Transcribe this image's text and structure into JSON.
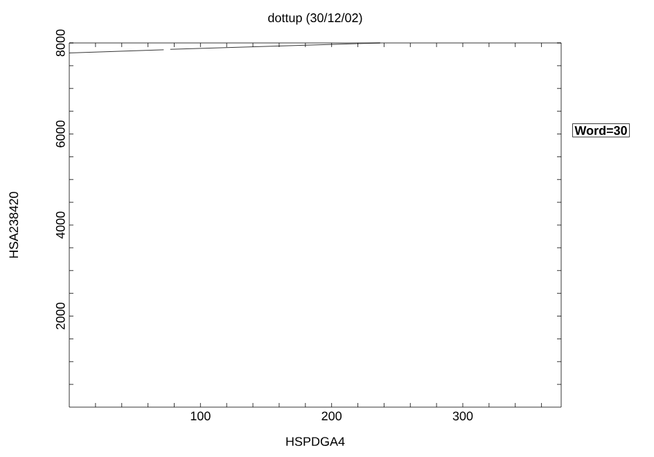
{
  "chart_data": {
    "type": "line",
    "title": "dottup (30/12/02)",
    "xlabel": "HSPDGA4",
    "ylabel": "HSA238420",
    "series": [
      {
        "color": "#000000",
        "x": [
          0,
          72,
          null,
          77,
          237
        ],
        "values": [
          7780,
          7850,
          null,
          7860,
          8000
        ]
      }
    ],
    "xlim": [
      0,
      375
    ],
    "ylim": [
      0,
      8000
    ],
    "xticks": [
      {
        "value": 20,
        "label": null
      },
      {
        "value": 40,
        "label": null
      },
      {
        "value": 60,
        "label": null
      },
      {
        "value": 80,
        "label": null
      },
      100,
      {
        "value": 120,
        "label": null
      },
      {
        "value": 140,
        "label": null
      },
      {
        "value": 160,
        "label": null
      },
      {
        "value": 180,
        "label": null
      },
      200,
      {
        "value": 220,
        "label": null
      },
      {
        "value": 240,
        "label": null
      },
      {
        "value": 260,
        "label": null
      },
      {
        "value": 280,
        "label": null
      },
      300,
      {
        "value": 320,
        "label": null
      },
      {
        "value": 340,
        "label": null
      },
      {
        "value": 360,
        "label": null
      }
    ],
    "yticks": [
      {
        "value": 500,
        "label": null
      },
      {
        "value": 1000,
        "label": null
      },
      {
        "value": 1500,
        "label": null
      },
      2000,
      {
        "value": 2500,
        "label": null
      },
      {
        "value": 3000,
        "label": null
      },
      {
        "value": 3500,
        "label": null
      },
      4000,
      {
        "value": 4500,
        "label": null
      },
      {
        "value": 5000,
        "label": null
      },
      {
        "value": 5500,
        "label": null
      },
      6000,
      {
        "value": 6500,
        "label": null
      },
      {
        "value": 7000,
        "label": null
      },
      {
        "value": 7500,
        "label": null
      },
      8000
    ],
    "annotations": [
      "Word=30"
    ],
    "grid": false,
    "marker": "none",
    "line_style": "solid"
  }
}
